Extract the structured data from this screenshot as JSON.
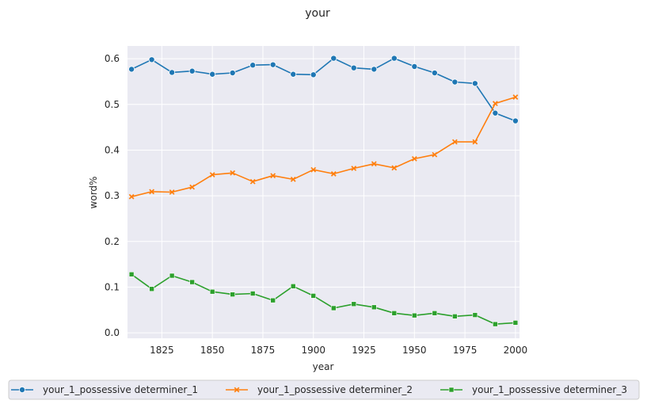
{
  "chart_data": {
    "type": "line",
    "title": "your",
    "xlabel": "year",
    "ylabel": "word%",
    "xlim": [
      1808,
      2002
    ],
    "ylim": [
      -0.012,
      0.628
    ],
    "xticks": [
      1825,
      1850,
      1875,
      1900,
      1925,
      1950,
      1975,
      2000
    ],
    "yticks": [
      0.0,
      0.1,
      0.2,
      0.3,
      0.4,
      0.5,
      0.6
    ],
    "grid": true,
    "legend_position": "bottom",
    "x": [
      1810,
      1820,
      1830,
      1840,
      1850,
      1860,
      1870,
      1880,
      1890,
      1900,
      1910,
      1920,
      1930,
      1940,
      1950,
      1960,
      1970,
      1980,
      1990,
      2000
    ],
    "series": [
      {
        "name": "your_1_possessive determiner_1",
        "color": "#1f77b4",
        "marker": "circle",
        "values": [
          0.577,
          0.598,
          0.57,
          0.573,
          0.566,
          0.569,
          0.586,
          0.587,
          0.566,
          0.565,
          0.601,
          0.58,
          0.577,
          0.601,
          0.583,
          0.569,
          0.549,
          0.546,
          0.481,
          0.464
        ]
      },
      {
        "name": "your_1_possessive determiner_2",
        "color": "#ff7f0e",
        "marker": "x",
        "values": [
          0.298,
          0.309,
          0.308,
          0.319,
          0.346,
          0.35,
          0.331,
          0.344,
          0.336,
          0.357,
          0.348,
          0.36,
          0.37,
          0.361,
          0.381,
          0.39,
          0.418,
          0.418,
          0.502,
          0.516
        ]
      },
      {
        "name": "your_1_possessive determiner_3",
        "color": "#2ca02c",
        "marker": "square",
        "values": [
          0.128,
          0.096,
          0.125,
          0.111,
          0.09,
          0.084,
          0.086,
          0.071,
          0.102,
          0.081,
          0.054,
          0.063,
          0.056,
          0.043,
          0.038,
          0.043,
          0.036,
          0.039,
          0.019,
          0.022
        ]
      }
    ]
  }
}
